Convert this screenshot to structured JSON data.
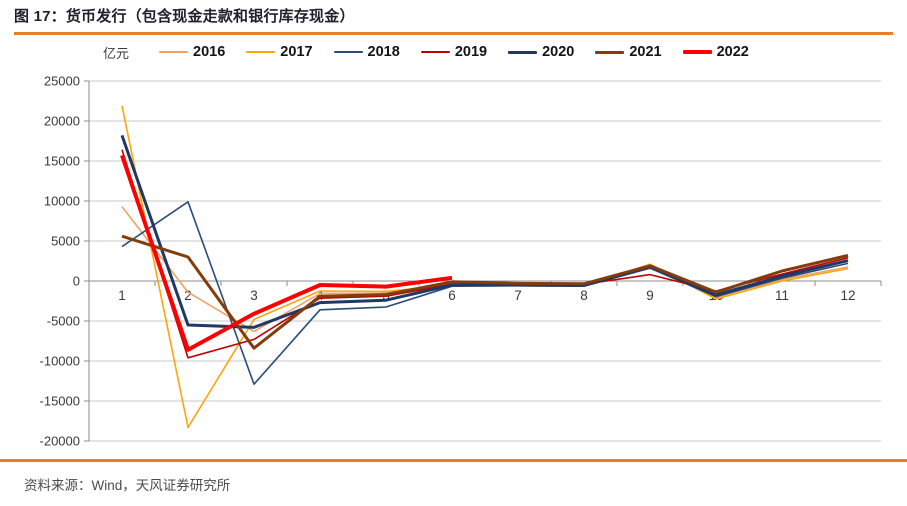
{
  "footer": {
    "source": "资料来源：Wind，天风证券研究所"
  },
  "chart_data": {
    "type": "line",
    "title": "图 17：货币发行（包含现金走款和银行库存现金）",
    "unit_label": "亿元",
    "xlabel": "",
    "ylabel": "亿元",
    "x": [
      1,
      2,
      3,
      4,
      5,
      6,
      7,
      8,
      9,
      10,
      11,
      12
    ],
    "ylim": [
      -20000,
      25000
    ],
    "ytick_step": 5000,
    "grid": true,
    "legend_position": "top",
    "series": [
      {
        "name": "2016",
        "color": "#F2A266",
        "width": 1.6,
        "values": [
          9300,
          -1400,
          -6300,
          -1550,
          -1500,
          -300,
          -400,
          -500,
          2000,
          -2050,
          200,
          1750
        ]
      },
      {
        "name": "2017",
        "color": "#FFA40A",
        "width": 1.6,
        "values": [
          21900,
          -18300,
          -4800,
          -1250,
          -1300,
          -500,
          -550,
          -600,
          2100,
          -2250,
          0,
          1550
        ]
      },
      {
        "name": "2018",
        "color": "#2A4B7C",
        "width": 1.6,
        "values": [
          4300,
          9900,
          -12900,
          -3600,
          -3250,
          -650,
          -600,
          -650,
          1600,
          -1950,
          350,
          2200
        ]
      },
      {
        "name": "2019",
        "color": "#C00000",
        "width": 1.6,
        "values": [
          16400,
          -9600,
          -7300,
          -2150,
          -1900,
          -400,
          -350,
          -400,
          800,
          -1250,
          850,
          2900
        ]
      },
      {
        "name": "2020",
        "color": "#1F3864",
        "width": 3,
        "values": [
          18200,
          -5500,
          -5800,
          -2700,
          -2400,
          -500,
          -500,
          -550,
          1800,
          -1750,
          600,
          2550
        ]
      },
      {
        "name": "2021",
        "color": "#843C0C",
        "width": 3,
        "values": [
          5600,
          3000,
          -8400,
          -1900,
          -1700,
          -100,
          -300,
          -350,
          1900,
          -1400,
          1250,
          3200
        ]
      },
      {
        "name": "2022",
        "color": "#FF0000",
        "width": 4,
        "values": [
          15700,
          -8600,
          -4100,
          -500,
          -700,
          400
        ]
      }
    ]
  }
}
